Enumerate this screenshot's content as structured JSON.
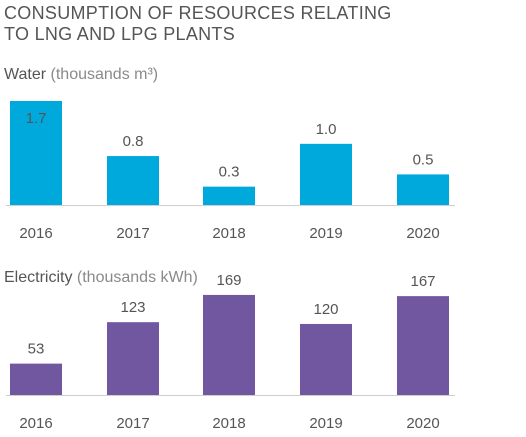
{
  "title": {
    "line1": "CONSUMPTION OF RESOURCES RELATING",
    "line2": "TO LNG AND LPG PLANTS"
  },
  "chart_data": [
    {
      "type": "bar",
      "title": "Water",
      "unit": "(thousands m³)",
      "categories": [
        "2016",
        "2017",
        "2018",
        "2019",
        "2020"
      ],
      "values": [
        1.7,
        0.8,
        0.3,
        1.0,
        0.5
      ],
      "value_labels": [
        "1.7",
        "0.8",
        "0.3",
        "1.0",
        "0.5"
      ],
      "ylim": [
        0,
        1.7
      ],
      "color": "#00a9dc",
      "grid": false
    },
    {
      "type": "bar",
      "title": "Electricity",
      "unit": "(thousands kWh)",
      "categories": [
        "2016",
        "2017",
        "2018",
        "2019",
        "2020"
      ],
      "values": [
        53,
        123,
        169,
        120,
        167
      ],
      "value_labels": [
        "53",
        "123",
        "169",
        "120",
        "167"
      ],
      "ylim": [
        0,
        380
      ],
      "color": "#7156a0",
      "grid": false
    }
  ]
}
